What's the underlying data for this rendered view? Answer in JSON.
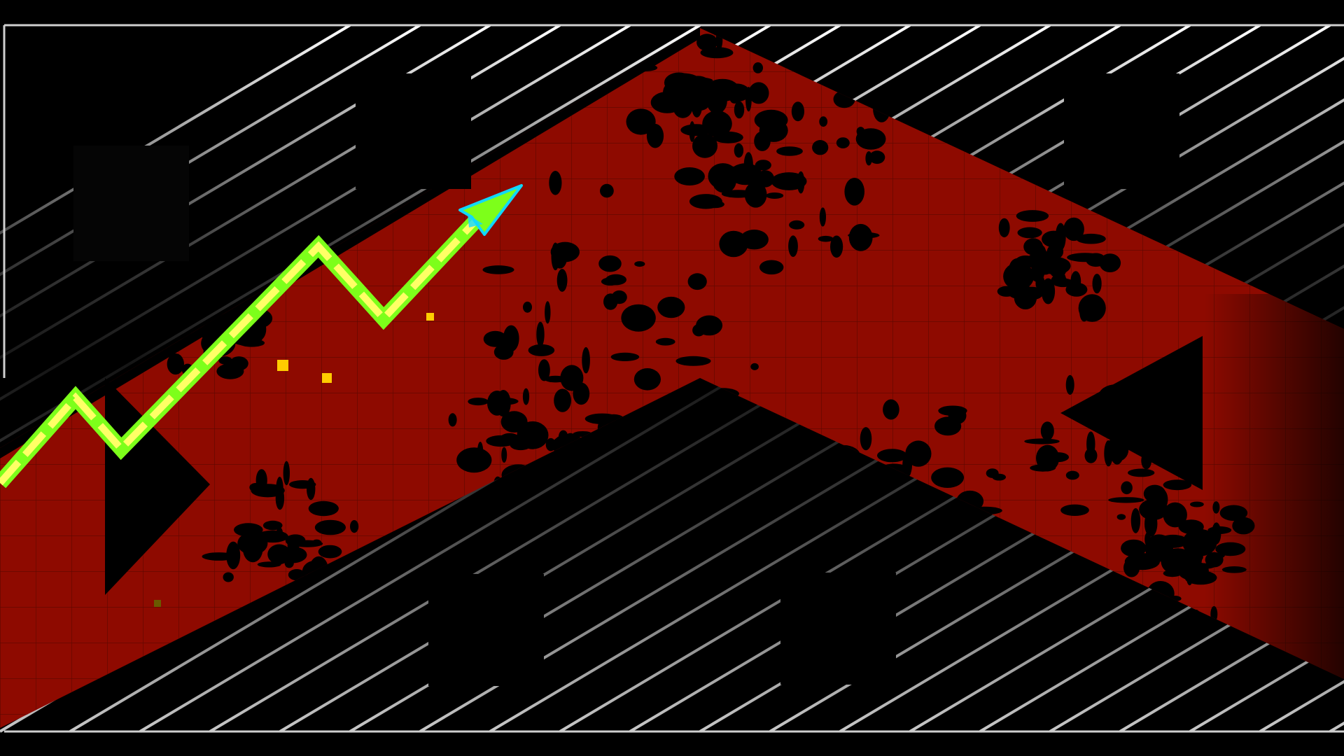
{
  "game": {
    "mode": "wave",
    "colors": {
      "background": "#000000",
      "corridor": "#8e0a00",
      "corridor_grid": "#5c0800",
      "splatter": "#000000",
      "grid_bright": "#ffffff",
      "grid_dim": "#2e2e2e",
      "trail_outer": "#7dff1a",
      "trail_inner": "#ffff66",
      "player_fill": "#7dff1a",
      "player_outline": "#10d8ff",
      "particle": "#ffcc00",
      "border": "#cfcfcf"
    },
    "icons": {
      "player": "wave-arrow-icon",
      "hazard": "spike-icon"
    }
  }
}
